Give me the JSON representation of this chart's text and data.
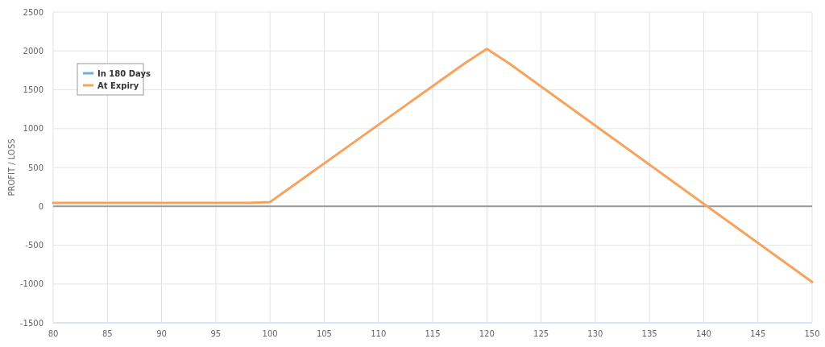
{
  "chart_data": {
    "type": "line",
    "ylabel": "PROFIT / LOSS",
    "x": [
      80,
      98,
      100,
      118,
      120,
      122,
      150
    ],
    "series": [
      {
        "name": "In 180 Days",
        "color": "#6aaee8",
        "values": [
          null,
          null,
          null,
          null,
          null,
          null,
          null
        ]
      },
      {
        "name": "At Expiry",
        "color": "#f7a35c",
        "values": [
          45,
          45,
          55,
          1845,
          2025,
          1845,
          -975
        ]
      }
    ],
    "xlim": [
      80,
      150
    ],
    "xticks": [
      80,
      85,
      90,
      95,
      100,
      105,
      110,
      115,
      120,
      125,
      130,
      135,
      140,
      145,
      150
    ],
    "ylim": [
      -1500,
      2500
    ],
    "yticks": [
      -1500,
      -1000,
      -500,
      0,
      500,
      1000,
      1500,
      2000,
      2500
    ],
    "ref_lines": [
      {
        "axis": "y",
        "value": 0,
        "color": "#999999"
      }
    ],
    "grid": true,
    "legend": "top left",
    "marker": "none",
    "line_style": "solid"
  }
}
